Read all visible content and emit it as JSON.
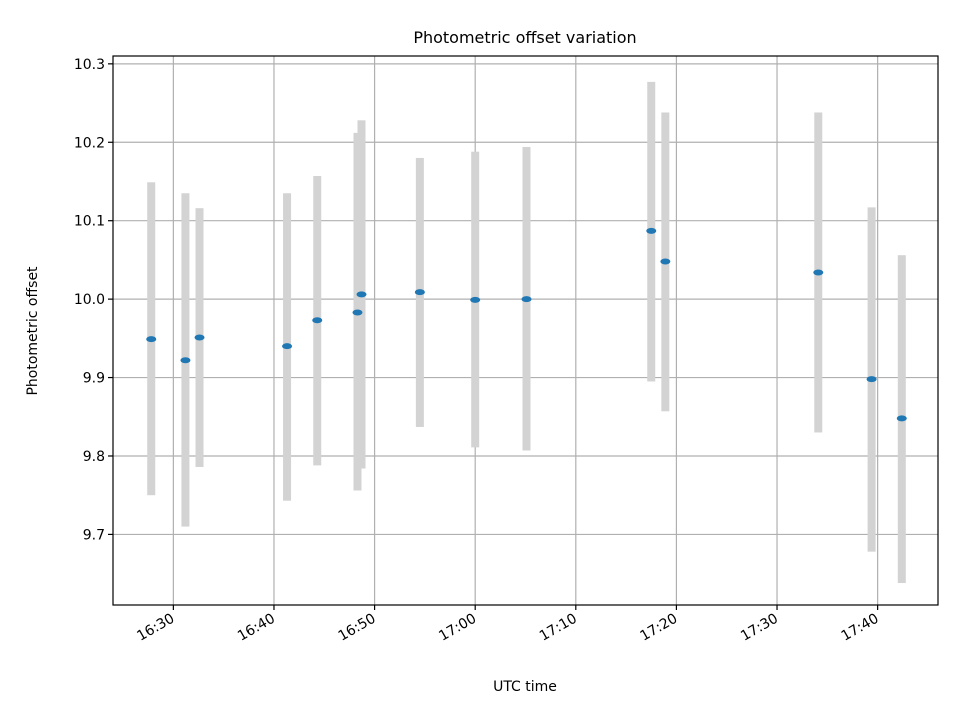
{
  "chart_data": {
    "type": "scatter",
    "title": "Photometric offset variation",
    "xlabel": "UTC time",
    "ylabel": "Photometric offset",
    "x_unit": "UTC time (HH:MM)",
    "xlim": [
      "16:24",
      "17:46"
    ],
    "ylim": [
      9.61,
      10.31
    ],
    "x_ticks": [
      "16:30",
      "16:40",
      "16:50",
      "17:00",
      "17:10",
      "17:20",
      "17:30",
      "17:40"
    ],
    "y_ticks": [
      9.7,
      9.8,
      9.9,
      10.0,
      10.1,
      10.2,
      10.3
    ],
    "y_tick_labels": [
      "9.7",
      "9.8",
      "9.9",
      "10.0",
      "10.1",
      "10.2",
      "10.3"
    ],
    "grid": true,
    "legend": "none",
    "marker_color": "#1f77b4",
    "errorbar_color": "#d3d3d3",
    "points": [
      {
        "x": "16:27:48",
        "y": 9.949,
        "err_low": 9.75,
        "err_high": 10.149
      },
      {
        "x": "16:31:12",
        "y": 9.922,
        "err_low": 9.71,
        "err_high": 10.135
      },
      {
        "x": "16:32:36",
        "y": 9.951,
        "err_low": 9.786,
        "err_high": 10.116
      },
      {
        "x": "16:41:18",
        "y": 9.94,
        "err_low": 9.743,
        "err_high": 10.135
      },
      {
        "x": "16:44:18",
        "y": 9.973,
        "err_low": 9.788,
        "err_high": 10.157
      },
      {
        "x": "16:48:18",
        "y": 9.983,
        "err_low": 9.756,
        "err_high": 10.212
      },
      {
        "x": "16:48:42",
        "y": 10.006,
        "err_low": 9.784,
        "err_high": 10.228
      },
      {
        "x": "16:54:30",
        "y": 10.009,
        "err_low": 9.837,
        "err_high": 10.18
      },
      {
        "x": "17:00:00",
        "y": 9.999,
        "err_low": 9.811,
        "err_high": 10.188
      },
      {
        "x": "17:05:06",
        "y": 10.0,
        "err_low": 9.807,
        "err_high": 10.194
      },
      {
        "x": "17:17:30",
        "y": 10.087,
        "err_low": 9.895,
        "err_high": 10.277
      },
      {
        "x": "17:18:54",
        "y": 10.048,
        "err_low": 9.857,
        "err_high": 10.238
      },
      {
        "x": "17:34:06",
        "y": 10.034,
        "err_low": 9.83,
        "err_high": 10.238
      },
      {
        "x": "17:39:24",
        "y": 9.898,
        "err_low": 9.678,
        "err_high": 10.117
      },
      {
        "x": "17:42:24",
        "y": 9.848,
        "err_low": 9.638,
        "err_high": 10.056
      }
    ]
  }
}
